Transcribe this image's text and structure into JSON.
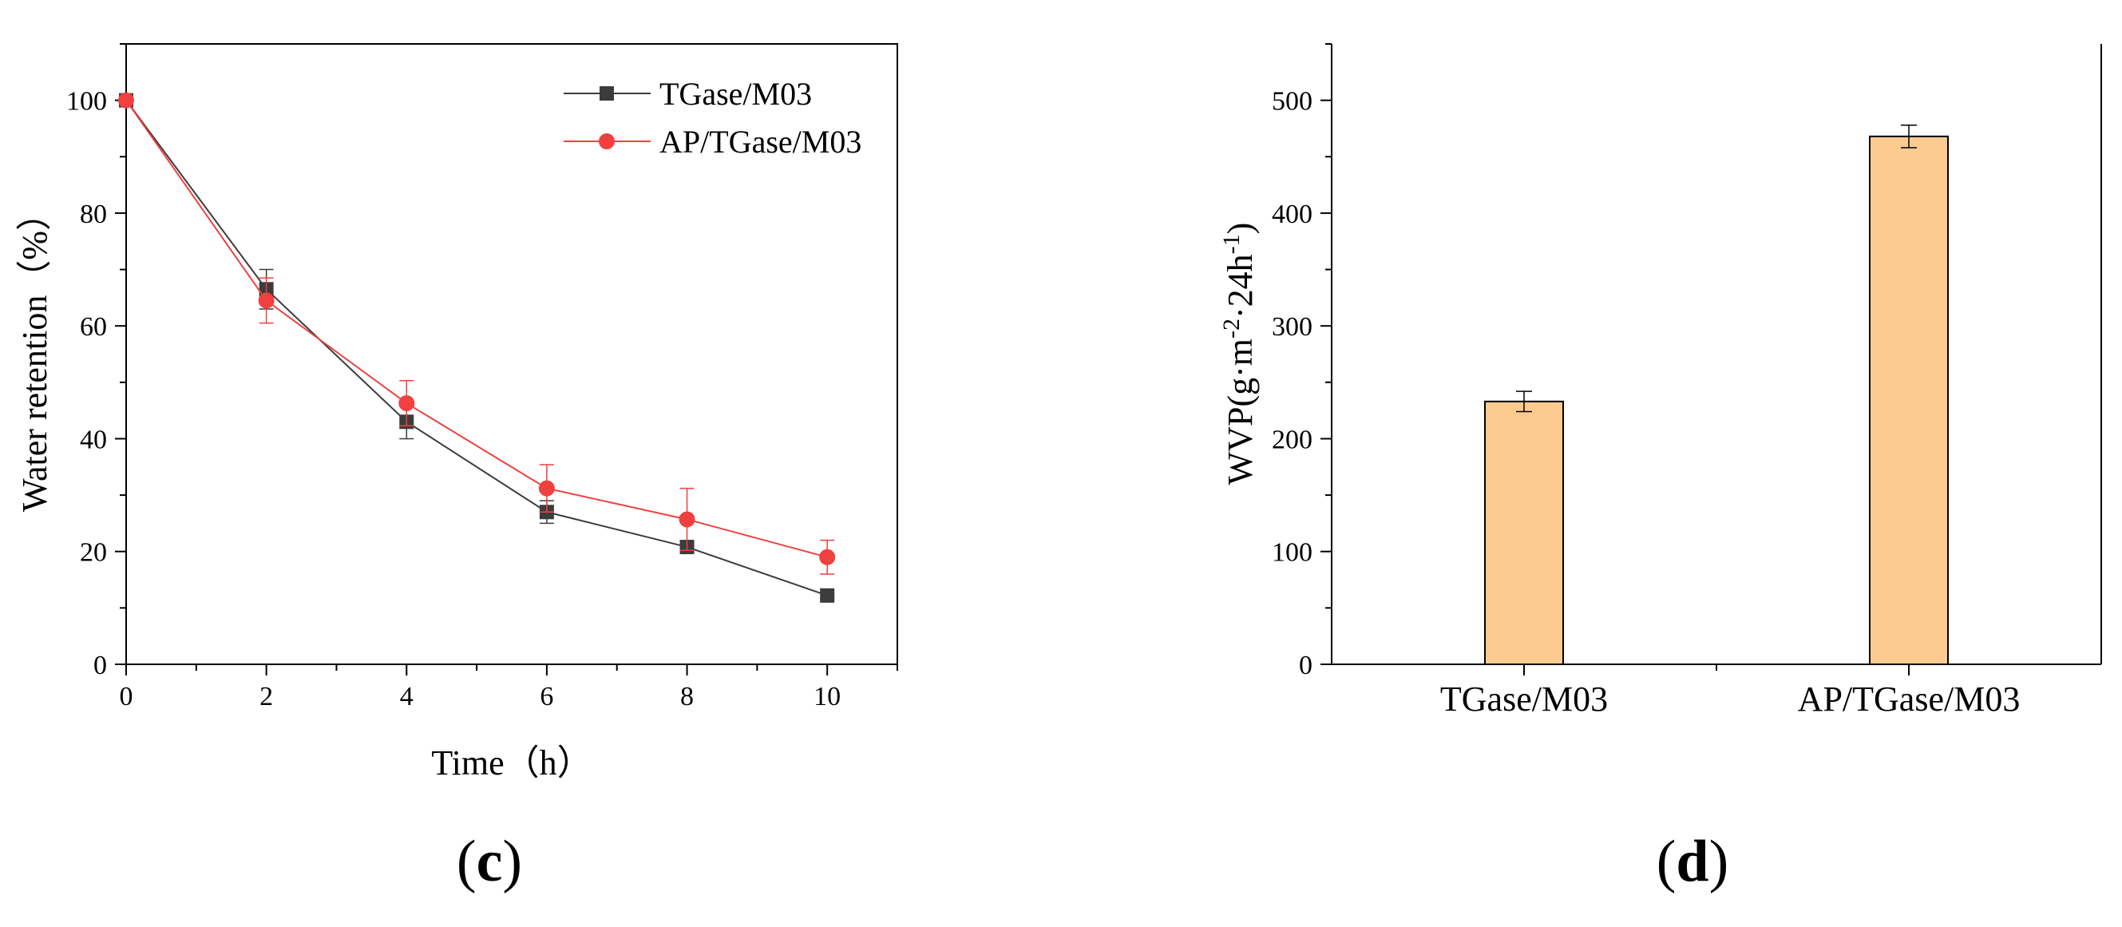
{
  "chart_data": [
    {
      "panel": "c",
      "type": "line",
      "xlabel": "Time（h）",
      "ylabel": "Water retention（%）",
      "xlim": [
        0,
        11
      ],
      "ylim": [
        0,
        110
      ],
      "xticks": [
        0,
        2,
        4,
        6,
        8,
        10
      ],
      "yticks": [
        0,
        20,
        40,
        60,
        80,
        100
      ],
      "xtick_labels": [
        "0",
        "2",
        "4",
        "6",
        "8",
        "10"
      ],
      "ytick_labels": [
        "0",
        "20",
        "40",
        "60",
        "80",
        "100"
      ],
      "legend_position": "top-right",
      "series": [
        {
          "name": "TGase/M03",
          "color": "#3c3c3c",
          "marker": "square",
          "x": [
            0,
            2,
            4,
            6,
            8,
            10
          ],
          "y": [
            100,
            66.5,
            43,
            27,
            20.8,
            12.2
          ],
          "err": [
            0,
            3.5,
            3,
            2,
            0.5,
            0.5
          ]
        },
        {
          "name": "AP/TGase/M03",
          "color": "#f04040",
          "marker": "circle",
          "x": [
            0,
            2,
            4,
            6,
            8,
            10
          ],
          "y": [
            100,
            64.5,
            46.3,
            31.2,
            25.7,
            19
          ],
          "err": [
            0,
            4,
            4,
            4.2,
            5.5,
            3
          ]
        }
      ]
    },
    {
      "panel": "d",
      "type": "bar",
      "ylabel_main": "WVP(g·m",
      "ylabel_sup1": "-2",
      "ylabel_mid": "·24h",
      "ylabel_sup2": "-1",
      "ylabel_end": ")",
      "categories": [
        "TGase/M03",
        "AP/TGase/M03"
      ],
      "values": [
        233,
        468
      ],
      "err": [
        9,
        10
      ],
      "color": "#fdcb90",
      "ylim": [
        0,
        550
      ],
      "yticks": [
        0,
        100,
        200,
        300,
        400,
        500
      ],
      "ytick_labels": [
        "0",
        "100",
        "200",
        "300",
        "400",
        "500"
      ]
    }
  ],
  "panel_labels": {
    "c_open": "(",
    "c_letter": "c",
    "c_close": ")",
    "d_open": "(",
    "d_letter": "d",
    "d_close": ")"
  }
}
